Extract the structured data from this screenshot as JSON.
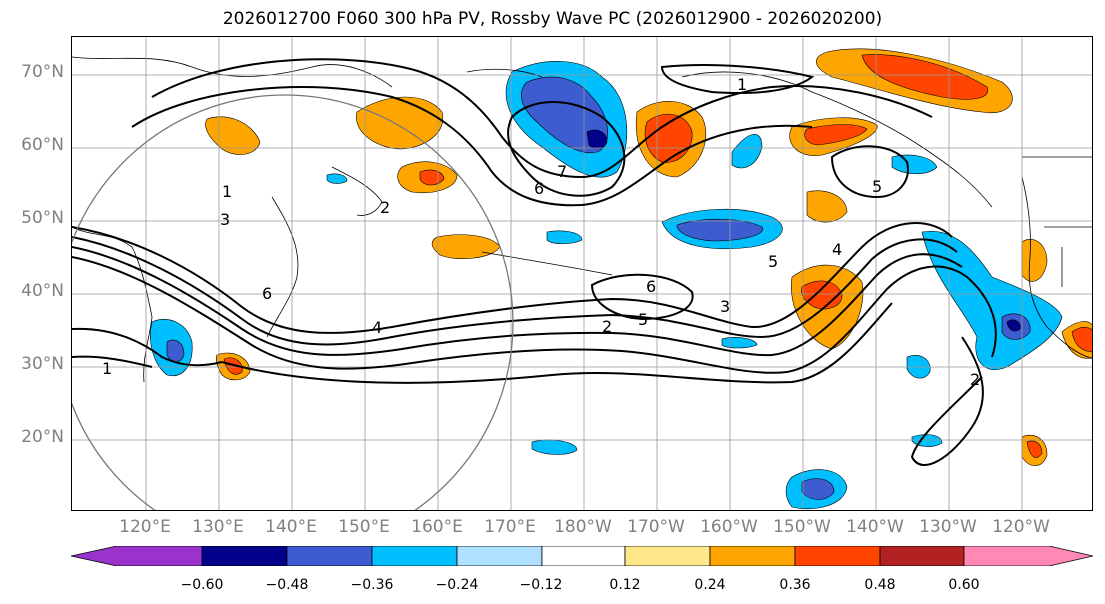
{
  "title": "2026012700 F060 300 hPa PV, Rossby Wave PC (2026012900 - 2026020200)",
  "lat_labels": [
    "70°N",
    "60°N",
    "50°N",
    "40°N",
    "30°N",
    "20°N"
  ],
  "lon_labels": [
    "120°E",
    "130°E",
    "140°E",
    "150°E",
    "160°E",
    "170°E",
    "180°W",
    "170°W",
    "160°W",
    "150°W",
    "140°W",
    "130°W",
    "120°W"
  ],
  "contour_labels": [
    "1",
    "2",
    "3",
    "4",
    "5",
    "6",
    "7"
  ],
  "colorbar": {
    "ticks": [
      "−0.60",
      "−0.48",
      "−0.36",
      "−0.24",
      "−0.12",
      "0.12",
      "0.24",
      "0.36",
      "0.48",
      "0.60"
    ],
    "colors": [
      "#9933cc",
      "#00008b",
      "#3c5ccf",
      "#00bfff",
      "#b0e0ff",
      "#ffffff",
      "#ffe88a",
      "#ffa500",
      "#ff4500",
      "#b22222",
      "#ff88b4"
    ]
  }
}
